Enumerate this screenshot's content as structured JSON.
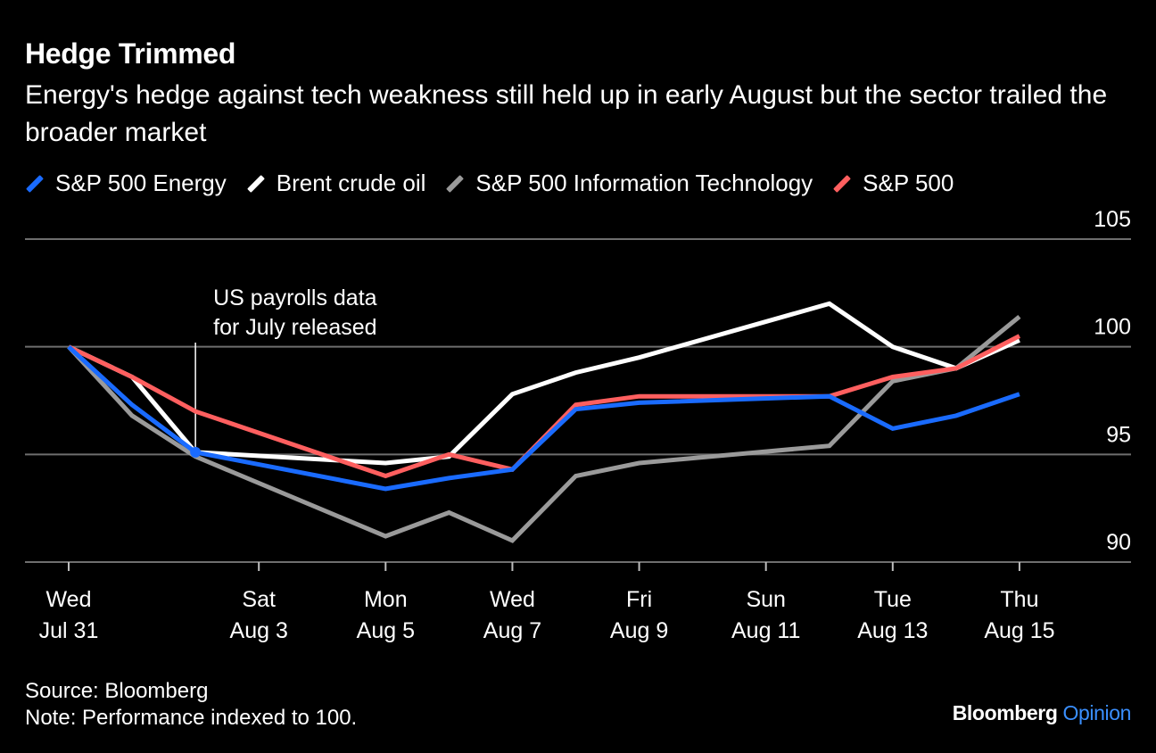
{
  "header": {
    "title": "Hedge Trimmed",
    "subtitle": "Energy's hedge against tech weakness still held up in early August but the sector trailed the broader market"
  },
  "footer": {
    "source": "Source: Bloomberg",
    "note": "Note: Performance indexed to 100."
  },
  "brand": {
    "name": "Bloomberg",
    "section": "Opinion"
  },
  "colors": {
    "background": "#000000",
    "energy": "#1a6bff",
    "brent": "#ffffff",
    "tech": "#9a9a9a",
    "sp500": "#ff5f5f",
    "grid": "#6e6e6e"
  },
  "chart_data": {
    "type": "line",
    "x": [
      "2024-07-31",
      "2024-08-01",
      "2024-08-02",
      "2024-08-05",
      "2024-08-06",
      "2024-08-07",
      "2024-08-08",
      "2024-08-09",
      "2024-08-12",
      "2024-08-13",
      "2024-08-14",
      "2024-08-15"
    ],
    "x_ticks": [
      {
        "date": "2024-07-31",
        "day": "Wed",
        "label": "Jul 31"
      },
      {
        "date": "2024-08-03",
        "day": "Sat",
        "label": "Aug 3"
      },
      {
        "date": "2024-08-05",
        "day": "Mon",
        "label": "Aug 5"
      },
      {
        "date": "2024-08-07",
        "day": "Wed",
        "label": "Aug 7"
      },
      {
        "date": "2024-08-09",
        "day": "Fri",
        "label": "Aug 9"
      },
      {
        "date": "2024-08-11",
        "day": "Sun",
        "label": "Aug 11"
      },
      {
        "date": "2024-08-13",
        "day": "Tue",
        "label": "Aug 13"
      },
      {
        "date": "2024-08-15",
        "day": "Thu",
        "label": "Aug 15"
      }
    ],
    "xlim": [
      "2024-07-31",
      "2024-08-16"
    ],
    "ylim": [
      90,
      105
    ],
    "y_ticks": [
      90,
      95,
      100,
      105
    ],
    "grid": true,
    "legend_position": "top-left",
    "series": [
      {
        "name": "S&P 500 Energy",
        "color": "#1a6bff",
        "values": [
          100,
          97.3,
          95.1,
          93.4,
          93.9,
          94.3,
          97.1,
          97.4,
          97.7,
          96.2,
          96.8,
          97.8
        ]
      },
      {
        "name": "Brent crude oil",
        "color": "#ffffff",
        "values": [
          100,
          98.6,
          95.1,
          94.6,
          94.9,
          97.8,
          98.8,
          99.5,
          102.0,
          100.0,
          99.0,
          100.3
        ]
      },
      {
        "name": "S&P 500 Information Technology",
        "color": "#9a9a9a",
        "values": [
          100,
          96.8,
          94.9,
          91.2,
          92.3,
          91.0,
          94.0,
          94.6,
          95.4,
          98.4,
          99.0,
          101.4
        ]
      },
      {
        "name": "S&P 500",
        "color": "#ff5f5f",
        "values": [
          100,
          98.6,
          97.0,
          94.0,
          95.0,
          94.3,
          97.3,
          97.7,
          97.7,
          98.6,
          99.0,
          100.5
        ]
      }
    ],
    "annotations": [
      {
        "date": "2024-08-02",
        "value": 95.1,
        "series": "S&P 500 Energy",
        "text_lines": [
          "US payrolls data",
          "for July released"
        ]
      }
    ]
  }
}
